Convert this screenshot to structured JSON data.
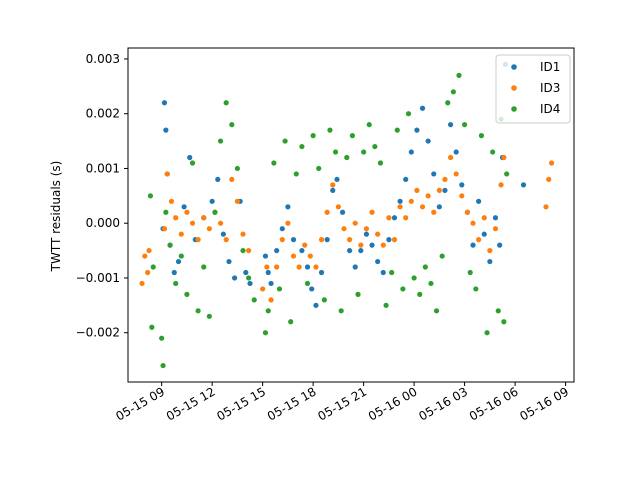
{
  "chart_data": {
    "type": "scatter",
    "title": "",
    "xlabel": "",
    "ylabel": "TWTT residuals (s)",
    "x_axis_type": "datetime",
    "xlim": [
      "2024-05-15 07:00",
      "2024-05-16 09:30"
    ],
    "ylim": [
      -0.0029,
      0.0032
    ],
    "x_ticks": [
      {
        "label": "05-15 09",
        "value": "2024-05-15 09:00"
      },
      {
        "label": "05-15 12",
        "value": "2024-05-15 12:00"
      },
      {
        "label": "05-15 15",
        "value": "2024-05-15 15:00"
      },
      {
        "label": "05-15 18",
        "value": "2024-05-15 18:00"
      },
      {
        "label": "05-15 21",
        "value": "2024-05-15 21:00"
      },
      {
        "label": "05-16 00",
        "value": "2024-05-16 00:00"
      },
      {
        "label": "05-16 03",
        "value": "2024-05-16 03:00"
      },
      {
        "label": "05-16 06",
        "value": "2024-05-16 06:00"
      },
      {
        "label": "05-16 09",
        "value": "2024-05-16 09:00"
      }
    ],
    "y_ticks": [
      {
        "label": "−0.002",
        "value": -0.002
      },
      {
        "label": "−0.001",
        "value": -0.001
      },
      {
        "label": "0.000",
        "value": 0.0
      },
      {
        "label": "0.001",
        "value": 0.001
      },
      {
        "label": "0.002",
        "value": 0.002
      },
      {
        "label": "0.003",
        "value": 0.003
      }
    ],
    "grid": false,
    "legend_position": "top-right",
    "series": [
      {
        "name": "ID1",
        "color": "#1f77b4",
        "points": [
          [
            "2024-05-15 09:05",
            -0.0001
          ],
          [
            "2024-05-15 09:10",
            0.0022
          ],
          [
            "2024-05-15 09:15",
            0.0017
          ],
          [
            "2024-05-15 09:20",
            0.0009
          ],
          [
            "2024-05-15 09:30",
            -0.0004
          ],
          [
            "2024-05-15 09:45",
            -0.0009
          ],
          [
            "2024-05-15 10:00",
            -0.0007
          ],
          [
            "2024-05-15 10:20",
            0.0003
          ],
          [
            "2024-05-15 10:40",
            0.0012
          ],
          [
            "2024-05-15 11:00",
            -0.0003
          ],
          [
            "2024-05-15 11:30",
            0.0001
          ],
          [
            "2024-05-15 12:00",
            0.0004
          ],
          [
            "2024-05-15 12:20",
            0.0008
          ],
          [
            "2024-05-15 12:40",
            -0.0002
          ],
          [
            "2024-05-15 13:00",
            -0.0007
          ],
          [
            "2024-05-15 13:20",
            -0.001
          ],
          [
            "2024-05-15 13:40",
            0.0004
          ],
          [
            "2024-05-15 14:00",
            -0.0009
          ],
          [
            "2024-05-15 14:15",
            -0.0011
          ],
          [
            "2024-05-15 15:10",
            -0.0006
          ],
          [
            "2024-05-15 15:20",
            -0.0009
          ],
          [
            "2024-05-15 15:30",
            -0.0011
          ],
          [
            "2024-05-15 15:50",
            -0.0005
          ],
          [
            "2024-05-15 16:10",
            -0.0001
          ],
          [
            "2024-05-15 16:30",
            0.0003
          ],
          [
            "2024-05-15 16:50",
            -0.0003
          ],
          [
            "2024-05-15 17:20",
            -0.0005
          ],
          [
            "2024-05-15 17:40",
            -0.0008
          ],
          [
            "2024-05-15 17:55",
            -0.0012
          ],
          [
            "2024-05-15 18:10",
            -0.0015
          ],
          [
            "2024-05-15 18:30",
            -0.0009
          ],
          [
            "2024-05-15 18:50",
            -0.0003
          ],
          [
            "2024-05-15 19:10",
            0.0006
          ],
          [
            "2024-05-15 19:25",
            0.0008
          ],
          [
            "2024-05-15 19:45",
            0.0002
          ],
          [
            "2024-05-15 20:10",
            -0.0005
          ],
          [
            "2024-05-15 20:30",
            -0.0008
          ],
          [
            "2024-05-15 20:50",
            -0.0005
          ],
          [
            "2024-05-15 21:10",
            -0.0002
          ],
          [
            "2024-05-15 21:30",
            -0.0004
          ],
          [
            "2024-05-15 21:50",
            -0.0007
          ],
          [
            "2024-05-15 22:10",
            -0.0009
          ],
          [
            "2024-05-15 22:30",
            -0.0003
          ],
          [
            "2024-05-15 22:50",
            0.0001
          ],
          [
            "2024-05-15 23:10",
            0.0004
          ],
          [
            "2024-05-15 23:30",
            0.0008
          ],
          [
            "2024-05-15 23:50",
            0.0013
          ],
          [
            "2024-05-16 00:10",
            0.0017
          ],
          [
            "2024-05-16 00:30",
            0.0021
          ],
          [
            "2024-05-16 00:50",
            0.0015
          ],
          [
            "2024-05-16 01:10",
            0.0009
          ],
          [
            "2024-05-16 01:30",
            0.0003
          ],
          [
            "2024-05-16 01:50",
            0.0006
          ],
          [
            "2024-05-16 02:10",
            0.0018
          ],
          [
            "2024-05-16 02:30",
            0.0013
          ],
          [
            "2024-05-16 02:50",
            0.0007
          ],
          [
            "2024-05-16 03:10",
            0.0002
          ],
          [
            "2024-05-16 03:30",
            -0.0004
          ],
          [
            "2024-05-16 03:50",
            0.0004
          ],
          [
            "2024-05-16 04:10",
            -0.0002
          ],
          [
            "2024-05-16 04:30",
            -0.0007
          ],
          [
            "2024-05-16 04:50",
            0.0001
          ],
          [
            "2024-05-16 05:05",
            -0.0004
          ],
          [
            "2024-05-16 05:15",
            0.0012
          ],
          [
            "2024-05-16 05:25",
            0.0029
          ],
          [
            "2024-05-16 06:30",
            0.0007
          ]
        ]
      },
      {
        "name": "ID3",
        "color": "#ff7f0e",
        "points": [
          [
            "2024-05-15 07:50",
            -0.0011
          ],
          [
            "2024-05-15 08:00",
            -0.0006
          ],
          [
            "2024-05-15 08:10",
            -0.0009
          ],
          [
            "2024-05-15 08:15",
            -0.0005
          ],
          [
            "2024-05-15 09:10",
            -0.0001
          ],
          [
            "2024-05-15 09:20",
            0.0009
          ],
          [
            "2024-05-15 09:35",
            0.0004
          ],
          [
            "2024-05-15 09:50",
            0.0001
          ],
          [
            "2024-05-15 10:10",
            -0.0002
          ],
          [
            "2024-05-15 10:30",
            0.0002
          ],
          [
            "2024-05-15 10:50",
            0.0
          ],
          [
            "2024-05-15 11:10",
            -0.0003
          ],
          [
            "2024-05-15 11:30",
            0.0001
          ],
          [
            "2024-05-15 11:50",
            -0.0001
          ],
          [
            "2024-05-15 12:10",
            0.0002
          ],
          [
            "2024-05-15 12:30",
            0.0
          ],
          [
            "2024-05-15 12:50",
            -0.0003
          ],
          [
            "2024-05-15 13:10",
            0.0008
          ],
          [
            "2024-05-15 13:30",
            0.0004
          ],
          [
            "2024-05-15 13:50",
            -0.0002
          ],
          [
            "2024-05-15 14:10",
            -0.0005
          ],
          [
            "2024-05-15 15:00",
            -0.0012
          ],
          [
            "2024-05-15 15:15",
            -0.0008
          ],
          [
            "2024-05-15 15:30",
            -0.0014
          ],
          [
            "2024-05-15 15:50",
            -0.0008
          ],
          [
            "2024-05-15 16:10",
            -0.0003
          ],
          [
            "2024-05-15 16:30",
            0.0
          ],
          [
            "2024-05-15 16:50",
            -0.0006
          ],
          [
            "2024-05-15 17:10",
            -0.0008
          ],
          [
            "2024-05-15 17:30",
            -0.0004
          ],
          [
            "2024-05-15 17:50",
            -0.0006
          ],
          [
            "2024-05-15 18:10",
            -0.0008
          ],
          [
            "2024-05-15 18:30",
            -0.0003
          ],
          [
            "2024-05-15 18:50",
            0.0002
          ],
          [
            "2024-05-15 19:10",
            0.0007
          ],
          [
            "2024-05-15 19:30",
            0.0003
          ],
          [
            "2024-05-15 19:50",
            -0.0001
          ],
          [
            "2024-05-15 20:10",
            -0.0003
          ],
          [
            "2024-05-15 20:30",
            0.0
          ],
          [
            "2024-05-15 20:50",
            -0.0004
          ],
          [
            "2024-05-15 21:10",
            -0.0001
          ],
          [
            "2024-05-15 21:30",
            0.0002
          ],
          [
            "2024-05-15 21:50",
            -0.0002
          ],
          [
            "2024-05-15 22:10",
            -0.0004
          ],
          [
            "2024-05-15 22:30",
            0.0001
          ],
          [
            "2024-05-15 22:50",
            -0.0003
          ],
          [
            "2024-05-15 23:10",
            0.0003
          ],
          [
            "2024-05-15 23:30",
            0.0001
          ],
          [
            "2024-05-15 23:50",
            0.0004
          ],
          [
            "2024-05-16 00:10",
            0.0006
          ],
          [
            "2024-05-16 00:30",
            0.0003
          ],
          [
            "2024-05-16 00:50",
            0.0005
          ],
          [
            "2024-05-16 01:10",
            0.0002
          ],
          [
            "2024-05-16 01:30",
            0.0006
          ],
          [
            "2024-05-16 01:50",
            0.0008
          ],
          [
            "2024-05-16 02:10",
            0.0012
          ],
          [
            "2024-05-16 02:30",
            0.0009
          ],
          [
            "2024-05-16 02:50",
            0.0005
          ],
          [
            "2024-05-16 03:10",
            0.0002
          ],
          [
            "2024-05-16 03:30",
            0.0
          ],
          [
            "2024-05-16 03:50",
            -0.0003
          ],
          [
            "2024-05-16 04:10",
            0.0001
          ],
          [
            "2024-05-16 04:30",
            -0.0005
          ],
          [
            "2024-05-16 04:50",
            -0.0001
          ],
          [
            "2024-05-16 05:10",
            0.0007
          ],
          [
            "2024-05-16 05:20",
            0.0012
          ],
          [
            "2024-05-16 07:50",
            0.0003
          ],
          [
            "2024-05-16 08:00",
            0.0008
          ],
          [
            "2024-05-16 08:10",
            0.0011
          ]
        ]
      },
      {
        "name": "ID4",
        "color": "#2ca02c",
        "points": [
          [
            "2024-05-15 08:20",
            0.0005
          ],
          [
            "2024-05-15 08:25",
            -0.0019
          ],
          [
            "2024-05-15 08:30",
            -0.0008
          ],
          [
            "2024-05-15 09:00",
            -0.0021
          ],
          [
            "2024-05-15 09:05",
            -0.0026
          ],
          [
            "2024-05-15 09:15",
            0.0002
          ],
          [
            "2024-05-15 09:30",
            -0.0004
          ],
          [
            "2024-05-15 09:50",
            -0.0011
          ],
          [
            "2024-05-15 10:10",
            -0.0006
          ],
          [
            "2024-05-15 10:30",
            -0.0013
          ],
          [
            "2024-05-15 10:50",
            0.0011
          ],
          [
            "2024-05-15 11:10",
            -0.0016
          ],
          [
            "2024-05-15 11:30",
            -0.0008
          ],
          [
            "2024-05-15 11:50",
            -0.0017
          ],
          [
            "2024-05-15 12:10",
            0.0002
          ],
          [
            "2024-05-15 12:30",
            0.0015
          ],
          [
            "2024-05-15 12:50",
            0.0022
          ],
          [
            "2024-05-15 13:10",
            0.0018
          ],
          [
            "2024-05-15 13:30",
            0.001
          ],
          [
            "2024-05-15 13:50",
            -0.0005
          ],
          [
            "2024-05-15 14:10",
            -0.001
          ],
          [
            "2024-05-15 14:30",
            -0.0014
          ],
          [
            "2024-05-15 15:10",
            -0.002
          ],
          [
            "2024-05-15 15:20",
            -0.0016
          ],
          [
            "2024-05-15 15:40",
            0.0011
          ],
          [
            "2024-05-15 16:00",
            -0.0012
          ],
          [
            "2024-05-15 16:20",
            0.0015
          ],
          [
            "2024-05-15 16:40",
            -0.0018
          ],
          [
            "2024-05-15 17:00",
            0.0009
          ],
          [
            "2024-05-15 17:20",
            0.0014
          ],
          [
            "2024-05-15 17:40",
            -0.0011
          ],
          [
            "2024-05-15 18:00",
            0.0016
          ],
          [
            "2024-05-15 18:20",
            0.001
          ],
          [
            "2024-05-15 18:40",
            -0.0014
          ],
          [
            "2024-05-15 19:00",
            0.0017
          ],
          [
            "2024-05-15 19:20",
            0.0013
          ],
          [
            "2024-05-15 19:40",
            -0.0016
          ],
          [
            "2024-05-15 20:00",
            0.0012
          ],
          [
            "2024-05-15 20:20",
            0.0016
          ],
          [
            "2024-05-15 20:40",
            -0.0013
          ],
          [
            "2024-05-15 21:00",
            0.0013
          ],
          [
            "2024-05-15 21:20",
            0.0018
          ],
          [
            "2024-05-15 21:40",
            0.0014
          ],
          [
            "2024-05-15 22:00",
            0.0011
          ],
          [
            "2024-05-15 22:20",
            -0.0015
          ],
          [
            "2024-05-15 22:40",
            -0.0009
          ],
          [
            "2024-05-15 23:00",
            0.0017
          ],
          [
            "2024-05-15 23:20",
            -0.0012
          ],
          [
            "2024-05-15 23:40",
            0.002
          ],
          [
            "2024-05-16 00:00",
            -0.001
          ],
          [
            "2024-05-16 00:20",
            -0.0013
          ],
          [
            "2024-05-16 00:40",
            -0.0008
          ],
          [
            "2024-05-16 01:00",
            -0.0011
          ],
          [
            "2024-05-16 01:20",
            -0.0016
          ],
          [
            "2024-05-16 01:40",
            -0.0006
          ],
          [
            "2024-05-16 02:00",
            0.0022
          ],
          [
            "2024-05-16 02:20",
            0.0024
          ],
          [
            "2024-05-16 02:40",
            0.0027
          ],
          [
            "2024-05-16 03:00",
            0.0018
          ],
          [
            "2024-05-16 03:20",
            -0.0009
          ],
          [
            "2024-05-16 03:40",
            -0.0012
          ],
          [
            "2024-05-16 04:00",
            0.0016
          ],
          [
            "2024-05-16 04:20",
            -0.002
          ],
          [
            "2024-05-16 04:40",
            0.0013
          ],
          [
            "2024-05-16 05:00",
            -0.0016
          ],
          [
            "2024-05-16 05:10",
            0.0019
          ],
          [
            "2024-05-16 05:20",
            -0.0018
          ],
          [
            "2024-05-16 05:30",
            0.0009
          ]
        ]
      }
    ]
  }
}
